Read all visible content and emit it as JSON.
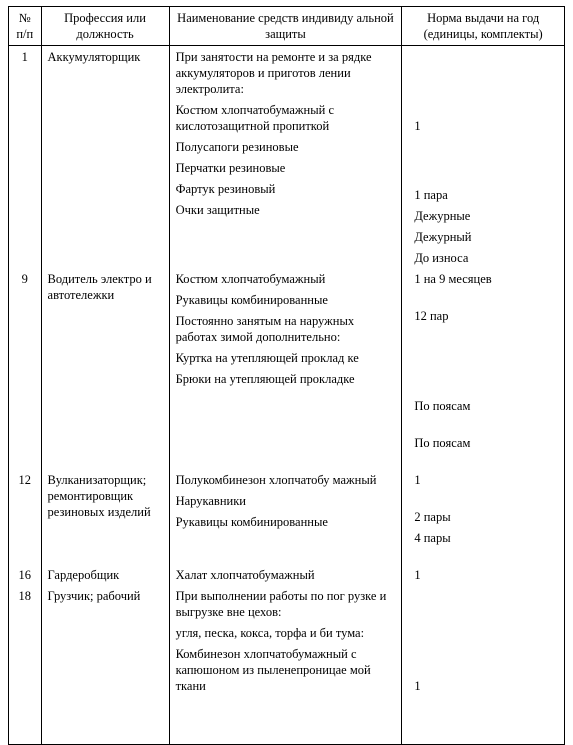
{
  "headers": {
    "c1": "№\nп/п",
    "c2": "Профессия или должность",
    "c3": "Наименование средств индивиду\nальной защиты",
    "c4": "Норма выдачи на год (единицы, комплекты)"
  },
  "rows": [
    {
      "n": "1",
      "prof": "Аккумуляторщик",
      "ppe": [
        "При занятости на ремонте и за\nрядке аккумуляторов и приготов\nлении электролита:",
        "Костюм хлопчатобумажный с кислотозащитной пропиткой",
        "Полусапоги резиновые",
        "Перчатки резиновые",
        "Фартук резиновый",
        "Очки защитные"
      ],
      "norm": [
        "",
        "1",
        "1 пара",
        "Дежурные",
        "Дежурный",
        "До износа"
      ]
    },
    {
      "n": "9",
      "prof": "Водитель электро\nи автотележки",
      "ppe": [
        "Костюм хлопчатобумажный",
        "Рукавицы комбинированные",
        "Постоянно занятым на наружных работах зимой дополнительно:",
        "Куртка на утепляющей проклад\nке",
        "Брюки на утепляющей прокладке"
      ],
      "norm": [
        "1 на 9 месяцев",
        "12 пар",
        "",
        "По поясам",
        "По поясам"
      ]
    },
    {
      "n": "12",
      "prof": "Вулканизаторщик; ремонтировщик резиновых изделий",
      "ppe": [
        "Полукомбинезон хлопчатобу\nмажный",
        "Нарукавники",
        "Рукавицы комбинированные"
      ],
      "norm": [
        "1",
        "2 пары",
        "4 пары"
      ]
    },
    {
      "n": "16",
      "prof": "Гардеробщик",
      "ppe": [
        "Халат хлопчатобумажный"
      ],
      "norm": [
        "1"
      ]
    },
    {
      "n": "18",
      "prof": "Грузчик; рабочий",
      "ppe": [
        "При выполнении работы по пог\nрузке и выгрузке вне цехов:",
        "угля, песка, кокса, торфа и би\nтума:",
        "Комбинезон хлопчатобумажный с капюшоном из пыленепроницае\nмой ткани"
      ],
      "norm": [
        "",
        "",
        "1"
      ]
    }
  ]
}
